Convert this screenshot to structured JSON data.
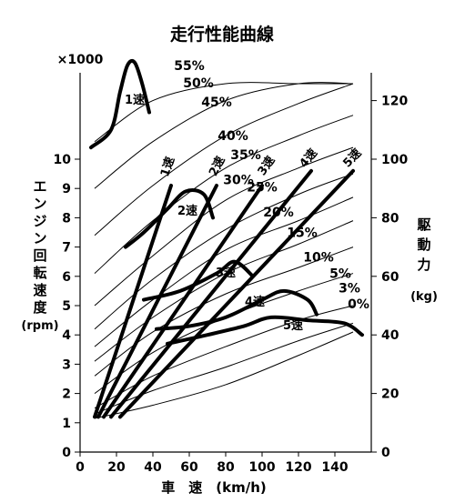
{
  "chart_data": {
    "type": "line",
    "title": "走行性能曲線",
    "xlabel": "車　速　(km/h)",
    "ylabel": "エンジン回転速度",
    "ylabel_unit": "(rpm)",
    "y2label": "駆動力",
    "y2label_unit": "(kg)",
    "y_multiplier": "×1000",
    "xlim": [
      0,
      160
    ],
    "ylim": [
      0,
      11
    ],
    "y2lim": [
      0,
      134
    ],
    "x_ticks": [
      "0",
      "20",
      "40",
      "60",
      "80",
      "100",
      "120",
      "140"
    ],
    "y_ticks": [
      "0",
      "1",
      "2",
      "3",
      "4",
      "5",
      "6",
      "7",
      "8",
      "9",
      "10"
    ],
    "y2_ticks": [
      "0",
      "20",
      "40",
      "60",
      "80",
      "100",
      "120"
    ],
    "grid": false,
    "gradient_curves": [
      {
        "label": "0%",
        "points": [
          [
            8,
            1.15
          ],
          [
            40,
            1.6
          ],
          [
            80,
            2.3
          ],
          [
            120,
            3.3
          ],
          [
            150,
            4.1
          ]
        ],
        "label_at": [
          153,
          4.9
        ]
      },
      {
        "label": "3%",
        "points": [
          [
            8,
            1.3
          ],
          [
            40,
            2.1
          ],
          [
            80,
            2.9
          ],
          [
            120,
            3.8
          ],
          [
            150,
            4.4
          ]
        ],
        "label_at": [
          148,
          5.45
        ]
      },
      {
        "label": "5%",
        "points": [
          [
            8,
            1.5
          ],
          [
            40,
            2.6
          ],
          [
            80,
            3.6
          ],
          [
            120,
            4.5
          ],
          [
            150,
            5.0
          ]
        ],
        "label_at": [
          143,
          5.95
        ]
      },
      {
        "label": "10%",
        "points": [
          [
            8,
            2.0
          ],
          [
            40,
            3.4
          ],
          [
            80,
            4.6
          ],
          [
            120,
            5.5
          ],
          [
            150,
            6.1
          ]
        ],
        "label_at": [
          131,
          6.5
        ]
      },
      {
        "label": "15%",
        "points": [
          [
            8,
            2.6
          ],
          [
            40,
            4.1
          ],
          [
            80,
            5.4
          ],
          [
            120,
            6.3
          ],
          [
            150,
            7.0
          ]
        ],
        "label_at": [
          122,
          7.35
        ]
      },
      {
        "label": "20%",
        "points": [
          [
            8,
            3.1
          ],
          [
            40,
            4.6
          ],
          [
            80,
            6.1
          ],
          [
            120,
            7.1
          ],
          [
            150,
            7.9
          ]
        ],
        "label_at": [
          109,
          8.05
        ]
      },
      {
        "label": "25%",
        "points": [
          [
            8,
            3.6
          ],
          [
            40,
            5.2
          ],
          [
            80,
            6.9
          ],
          [
            120,
            7.9
          ],
          [
            150,
            8.7
          ]
        ],
        "label_at": [
          100,
          8.9
        ]
      },
      {
        "label": "30%",
        "points": [
          [
            8,
            4.2
          ],
          [
            40,
            5.9
          ],
          [
            80,
            7.6
          ],
          [
            120,
            8.8
          ],
          [
            150,
            9.5
          ]
        ],
        "label_at": [
          87,
          9.15
        ]
      },
      {
        "label": "35%",
        "points": [
          [
            8,
            5.0
          ],
          [
            40,
            6.7
          ],
          [
            80,
            8.6
          ],
          [
            120,
            9.7
          ],
          [
            150,
            10.4
          ]
        ],
        "label_at": [
          91,
          10.0
        ]
      },
      {
        "label": "40%",
        "points": [
          [
            8,
            6.1
          ],
          [
            40,
            7.9
          ],
          [
            80,
            9.7
          ],
          [
            120,
            10.8
          ],
          [
            150,
            11.5
          ]
        ],
        "label_at": [
          84,
          10.65
        ]
      },
      {
        "label": "45%",
        "points": [
          [
            8,
            7.4
          ],
          [
            40,
            9.1
          ],
          [
            80,
            10.8
          ],
          [
            120,
            11.9
          ],
          [
            150,
            12.6
          ]
        ],
        "label_at": [
          75,
          11.8
        ]
      },
      {
        "label": "50%",
        "points": [
          [
            8,
            9.0
          ],
          [
            40,
            10.6
          ],
          [
            80,
            12.0
          ],
          [
            120,
            13.0
          ],
          [
            150,
            13.6
          ]
        ],
        "label_at": [
          65,
          12.45
        ]
      },
      {
        "label": "55%",
        "points": [
          [
            8,
            10.6
          ],
          [
            40,
            12.0
          ],
          [
            80,
            13.2
          ],
          [
            120,
            14.0
          ],
          [
            150,
            14.6
          ]
        ],
        "label_at": [
          60,
          13.05
        ]
      }
    ],
    "gear_lines": [
      {
        "label": "1速",
        "points": [
          [
            8,
            1.2
          ],
          [
            50,
            9.1
          ]
        ],
        "label_at": [
          50,
          9.7
        ]
      },
      {
        "label": "2速",
        "points": [
          [
            10,
            1.2
          ],
          [
            75,
            9.1
          ]
        ],
        "label_at": [
          77,
          9.7
        ]
      },
      {
        "label": "3速",
        "points": [
          [
            13,
            1.2
          ],
          [
            100,
            9.1
          ]
        ],
        "label_at": [
          104,
          9.7
        ]
      },
      {
        "label": "4速",
        "points": [
          [
            17,
            1.2
          ],
          [
            127,
            9.6
          ]
        ],
        "label_at": [
          127,
          9.95
        ]
      },
      {
        "label": "5速",
        "points": [
          [
            22,
            1.2
          ],
          [
            150,
            9.6
          ]
        ],
        "label_at": [
          151,
          9.95
        ]
      }
    ],
    "driving_force_curves": [
      {
        "label": "1速",
        "points": [
          [
            6,
            104
          ],
          [
            17,
            110
          ],
          [
            22,
            123
          ],
          [
            26,
            132
          ],
          [
            30,
            133
          ],
          [
            34,
            126
          ],
          [
            38,
            116
          ]
        ],
        "label_at": [
          30,
          119
        ]
      },
      {
        "label": "2速",
        "points": [
          [
            25,
            70
          ],
          [
            35,
            75
          ],
          [
            48,
            83
          ],
          [
            58,
            89
          ],
          [
            68,
            88
          ],
          [
            73,
            80
          ]
        ],
        "label_at": [
          59,
          81
        ]
      },
      {
        "label": "3速",
        "points": [
          [
            35,
            52
          ],
          [
            55,
            55
          ],
          [
            75,
            61
          ],
          [
            85,
            65
          ],
          [
            95,
            60
          ]
        ],
        "label_at": [
          80,
          60
        ]
      },
      {
        "label": "4速",
        "points": [
          [
            42,
            42
          ],
          [
            60,
            43
          ],
          [
            80,
            46
          ],
          [
            100,
            52
          ],
          [
            112,
            55
          ],
          [
            125,
            52
          ],
          [
            130,
            47
          ]
        ],
        "label_at": [
          96,
          50
        ]
      },
      {
        "label": "5速",
        "points": [
          [
            48,
            37
          ],
          [
            70,
            40
          ],
          [
            90,
            43
          ],
          [
            105,
            46
          ],
          [
            125,
            45
          ],
          [
            145,
            44
          ],
          [
            155,
            40
          ]
        ],
        "label_at": [
          117,
          42
        ]
      }
    ]
  }
}
